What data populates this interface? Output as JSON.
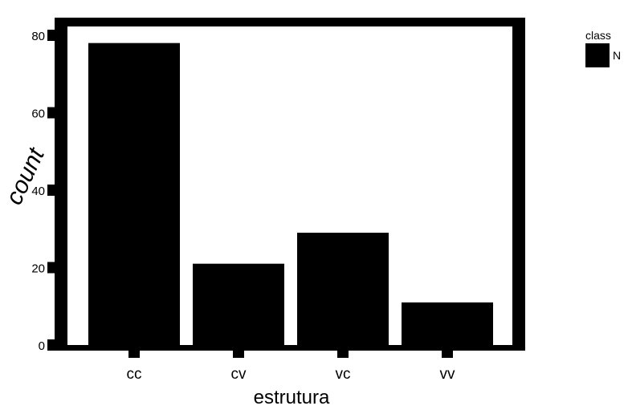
{
  "chart_data": {
    "type": "bar",
    "categories": [
      "cc",
      "cv",
      "vc",
      "vv"
    ],
    "values": [
      78,
      21,
      29,
      11
    ],
    "xlabel": "estrutura",
    "ylabel": "count",
    "ylim": [
      0,
      83
    ],
    "yticks": [
      0,
      20,
      40,
      60,
      80
    ],
    "bar_color": "#000000",
    "background": "#ffffff",
    "grid": false,
    "legend": {
      "title": "class",
      "entries": [
        "N"
      ],
      "position": "right"
    }
  }
}
